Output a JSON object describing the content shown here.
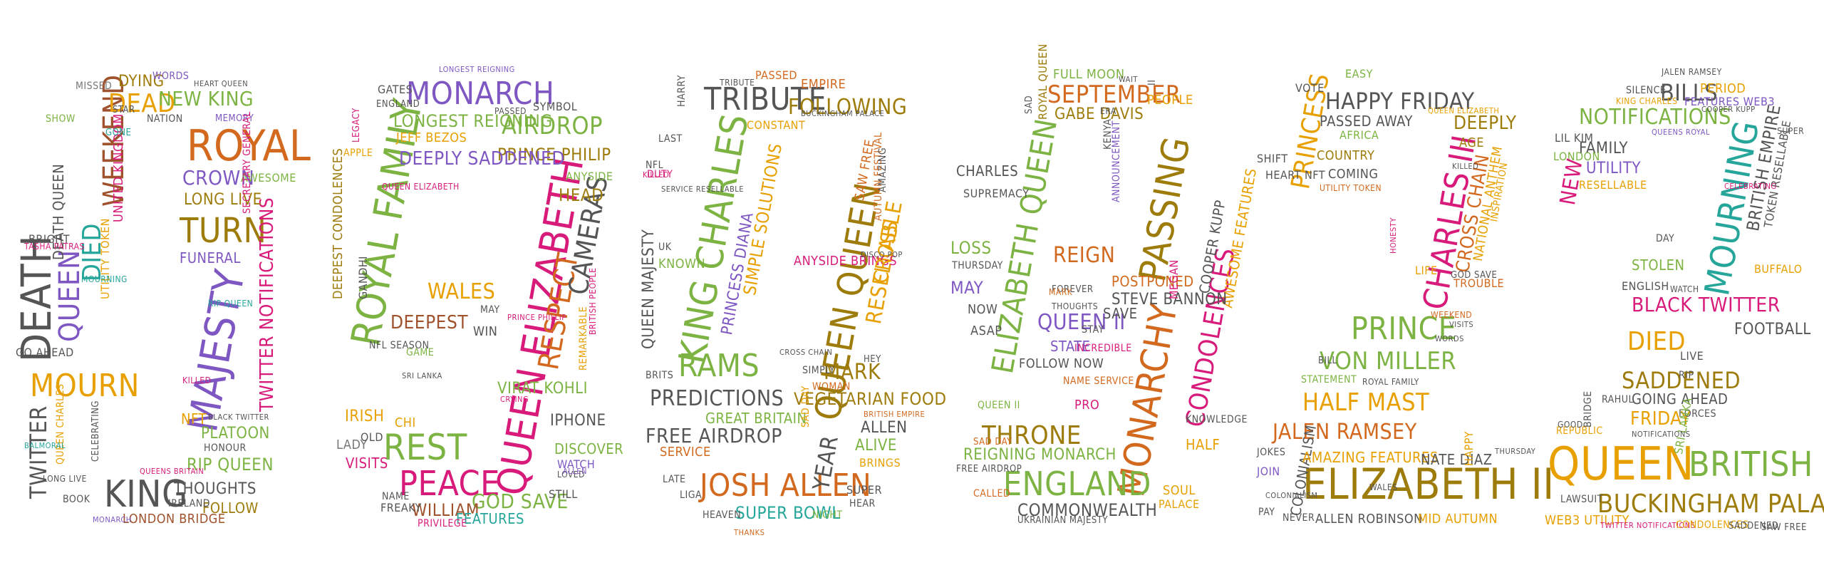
{
  "palette": {
    "green": "#7cb342",
    "orange": "#e8a000",
    "purple": "#7e57c2",
    "teal": "#26a69a",
    "magenta": "#d81b7a",
    "brown": "#a0522d",
    "olive": "#9e7c0c",
    "dark": "#555555",
    "gray": "#777777",
    "red": "#e53935",
    "blue": "#3f6fb5"
  },
  "words": {
    "d0": {
      "w1": "Death",
      "w2": "Queen",
      "w3": "Died",
      "w4": "Weekend",
      "w5": "Mourn",
      "w6": "Majesty",
      "w7": "Royal",
      "w8": "Turn",
      "w9": "King",
      "w10": "Twitter",
      "w11": "Twitter Notifications",
      "w12": "Dead",
      "w13": "New King",
      "w14": "Crown",
      "w15": "Long Live",
      "w16": "Funeral",
      "w17": "Death Queen",
      "w18": "Rip Queen",
      "w19": "Platoon",
      "w20": "Thoughts",
      "w21": "Follow",
      "w22": "London Bridge",
      "w23": "Utility Token",
      "w24": "United Kingdom",
      "w25": "Dying",
      "w26": "Words",
      "w27": "Missed",
      "w28": "Nation",
      "w29": "Memory",
      "w30": "Awesome",
      "w31": "Secretary General",
      "w32": "Go ahead",
      "w33": "Queen Charles",
      "w34": "Celebrating",
      "w35": "Honour",
      "w36": "NFT",
      "w37": "Bright",
      "w38": "Show",
      "w39": "Star",
      "w40": "Book",
      "w41": "Ireland",
      "w42": "Long live",
      "w43": "Tasha Patras",
      "w44": "Black Twitter",
      "w45": "Queens Britain",
      "w46": "Monarch",
      "w47": "Balmoral",
      "w48": "Gone",
      "w49": "Mourning",
      "w50": "Rip Queen",
      "w51": "Heart Queen",
      "w52": "Killed"
    },
    "d9": {
      "w1": "Royal Family",
      "w2": "Monarch",
      "w3": "Queen Elizabeth",
      "w4": "Respect",
      "w5": "Cameras",
      "w6": "Airdrop",
      "w7": "Prince Philip",
      "w8": "Longest Reigning",
      "w9": "Jeff Bezos",
      "w10": "Deeply Saddened",
      "w11": "Wales",
      "w12": "Deepest",
      "w13": "Rest",
      "w14": "Peace",
      "w15": "God Save",
      "w16": "William",
      "w17": "Features",
      "w18": "Visits",
      "w19": "Irish",
      "w20": "Lady",
      "w21": "Virat Kohli",
      "w22": "iPhone",
      "w23": "Discover",
      "w24": "Watch",
      "w25": "Deepest Condolences",
      "w26": "Gandhi",
      "w27": "Anyside",
      "w28": "Head",
      "w29": "Gates",
      "w30": "England",
      "w31": "Symbol",
      "w32": "Legacy",
      "w33": "Apple",
      "w34": "NFL Season",
      "w35": "Game",
      "w36": "Win",
      "w37": "May",
      "w38": "Chi",
      "w39": "Old",
      "w40": "Freaky",
      "w41": "Privilege",
      "w42": "Still",
      "w43": "Name",
      "w44": "Remarkable",
      "w45": "British People",
      "w46": "Sri Lanka",
      "w47": "Prince Phillip",
      "w48": "Longest reigning",
      "w49": "Queen Elizabeth",
      "w50": "Passed",
      "w51": "Crying",
      "w52": "Loved",
      "w53": "Allen"
    },
    "d0b": {
      "w1": "King Charles",
      "w2": "Tribute",
      "w3": "Queen Queen",
      "w4": "Rams",
      "w5": "Predictions",
      "w6": "Free Airdrop",
      "w7": "Service",
      "w8": "Resellable",
      "w9": "Josh Allen",
      "w10": "Super Bowl",
      "w11": "Year",
      "w12": "Mark",
      "w13": "Vegetarian Food",
      "w14": "Allen",
      "w15": "Alive",
      "w16": "Simply",
      "w17": "Woman",
      "w18": "Queen Majesty",
      "w19": "Princess Diana",
      "w20": "Simple Solutions",
      "w21": "Following",
      "w22": "Empire",
      "w23": "Passed",
      "w24": "Constant",
      "w25": "Anyside Brings",
      "w26": "Great Britain",
      "w27": "Cross",
      "w28": "Saw Free",
      "w29": "Autumn Festival",
      "w30": "Amazing",
      "w31": "Harry",
      "w32": "Known",
      "w33": "Last",
      "w34": "NFL",
      "w35": "Duty",
      "w36": "Brits",
      "w37": "Late",
      "w38": "Liga",
      "w39": "Heaven",
      "w40": "Night",
      "w41": "Super",
      "w42": "Hear",
      "w43": "Hey",
      "w44": "Brings",
      "w45": "Sad Day",
      "w46": "Buckingham Palace",
      "w47": "Service Resellable",
      "w48": "Killed",
      "w49": "UK",
      "w50": "British Empire",
      "w51": "Disco Pop",
      "w52": "Cross Chain",
      "w53": "Thanks",
      "w54": "Tribute"
    },
    "d2": {
      "w1": "Elizabeth Queen",
      "w2": "September",
      "w3": "Passing",
      "w4": "Monarchy",
      "w5": "Condolences",
      "w6": "England",
      "w7": "Commonwealth",
      "w8": "Throne",
      "w9": "Reigning Monarch",
      "w10": "Reign",
      "w11": "Queen II",
      "w12": "Gabe Davis",
      "w13": "Full moon",
      "w14": "Cooper Kupp",
      "w15": "Awesome Features",
      "w16": "Steve Bannon",
      "w17": "Postponed",
      "w18": "Save",
      "w19": "Loss",
      "w20": "Thursday",
      "w21": "May",
      "w22": "Now",
      "w23": "ASAP",
      "w24": "State",
      "w25": "Follow Now",
      "w26": "Charles",
      "w27": "Supremacy",
      "w28": "People",
      "w29": "Announcement",
      "w30": "Kenya",
      "w31": "Megan",
      "w32": "Soul",
      "w33": "Palace",
      "w34": "Half",
      "w35": "Called",
      "w36": "Ukrainian Majesty",
      "w37": "Royal Queen",
      "w38": "II",
      "w39": "Knowledge",
      "w40": "Stay",
      "w41": "Pro",
      "w42": "Sad",
      "w43": "Incredible",
      "w44": "Queen II",
      "w45": "Sad Day",
      "w46": "Free Airdrop",
      "w47": "Forever",
      "w48": "Mark",
      "w49": "Thoughts",
      "w50": "Name Service",
      "w51": "Era",
      "w52": "Wait"
    },
    "d2b": {
      "w1": "Charles III",
      "w2": "Princess",
      "w3": "Happy Friday",
      "w4": "Passed away",
      "w5": "Country",
      "w6": "Coming",
      "w7": "Prince",
      "w8": "Von Miller",
      "w9": "Half Mast",
      "w10": "Jalen Ramsey",
      "w11": "Elizabeth II",
      "w12": "Colonialism",
      "w13": "Amazing features",
      "w14": "Nate Diaz",
      "w15": "Allen Robinson",
      "w16": "Mid Autumn",
      "w17": "Cross Chain",
      "w18": "National Anthem",
      "w19": "Inspiration",
      "w20": "Deeply",
      "w21": "Age",
      "w22": "Vote",
      "w23": "Easy",
      "w24": "Africa",
      "w25": "Shift",
      "w26": "Heart NFT",
      "w27": "Statement",
      "w28": "Royal Family",
      "w29": "Jokes",
      "w30": "Join",
      "w31": "Pay",
      "w32": "Never",
      "w33": "Happy",
      "w34": "Life",
      "w35": "Trouble",
      "w36": "God Save",
      "w37": "Utility Token",
      "w38": "Weekend",
      "w39": "Words",
      "w40": "Thursday",
      "w41": "Wales",
      "w42": "Queen Elizabeth",
      "w43": "Bill",
      "w44": "Colonialism",
      "w45": "Honesty",
      "w46": "Visits",
      "w47": "Killed"
    },
    "d2c": {
      "w1": "Mourning",
      "w2": "Notifications",
      "w3": "Bills",
      "w4": "Features Web3",
      "w5": "Period",
      "w6": "Family",
      "w7": "Utility",
      "w8": "Resellable",
      "w9": "London",
      "w10": "New",
      "w11": "Lil Kim",
      "w12": "British Empire",
      "w13": "Token Resellable",
      "w14": "Black Twitter",
      "w15": "Football",
      "w16": "Died",
      "w17": "Saddened",
      "w18": "Friday",
      "w19": "Queen",
      "w20": "British",
      "w21": "Buckingham Palace",
      "w22": "Going Ahead",
      "w23": "Stolen",
      "w24": "Buffalo",
      "w25": "English",
      "w26": "Day",
      "w27": "Live",
      "w28": "Rip",
      "w29": "Rahul",
      "w30": "Forces",
      "w31": "Sri Lanka",
      "w32": "Web3 Utility",
      "w33": "Lawsuit",
      "w34": "Twitter Notifications",
      "w35": "Condolences",
      "w36": "Saddened",
      "w37": "Saw Free",
      "w38": "Silence",
      "w39": "King Charles",
      "w40": "Jalen Ramsey",
      "w41": "Cooper Kupp",
      "w42": "Queens Royal",
      "w43": "Republic",
      "w44": "Bridge",
      "w45": "Good",
      "w46": "Super",
      "w47": "Watch",
      "w48": "Notifications",
      "w49": "Celebrating"
    }
  }
}
